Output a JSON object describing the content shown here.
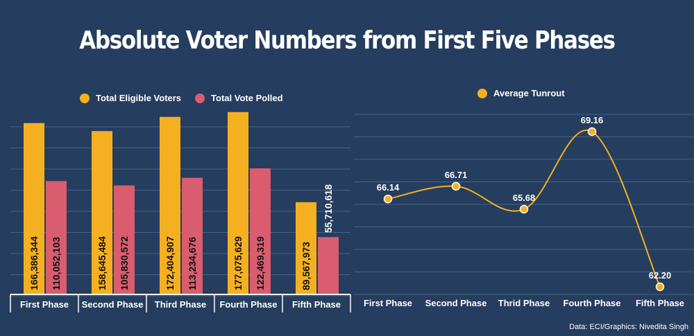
{
  "title": "Absolute Voter Numbers from First Five Phases",
  "source": "Data: ECI/Graphics: Nivedita Singh",
  "colors": {
    "background": "#253d5e",
    "eligible": "#f5b021",
    "polled": "#d95d6f",
    "line": "#f5b021",
    "grid": "#4a6283"
  },
  "chart_data": [
    {
      "type": "bar",
      "title": "",
      "categories": [
        "First Phase",
        "Second Phase",
        "Third Phase",
        "Fourth Phase",
        "Fifth Phase"
      ],
      "series": [
        {
          "name": "Total Eligible Voters",
          "values": [
            166386344,
            158645484,
            172404907,
            177075629,
            89567973
          ],
          "labels": [
            "166,386,344",
            "158,645,484",
            "172,404,907",
            "177,075,629",
            "89,567,973"
          ]
        },
        {
          "name": "Total Vote Polled",
          "values": [
            110052103,
            105830572,
            113234676,
            122469319,
            55710618
          ],
          "labels": [
            "110,052,103",
            "105,830,572",
            "113,234,676",
            "122,469,319",
            "55,710,618"
          ]
        }
      ],
      "ylim": [
        0,
        185000000
      ],
      "grid": true,
      "legend": "top-center"
    },
    {
      "type": "line",
      "title": "",
      "categories": [
        "First Phase",
        "Second Phase",
        "Thrid Phase",
        "Fourth Phase",
        "Fifth Phase"
      ],
      "series": [
        {
          "name": "Average Tunrout",
          "values": [
            66.14,
            66.71,
            65.68,
            69.16,
            62.2
          ],
          "labels": [
            "66.14",
            "66.71",
            "65.68",
            "69.16",
            "62.20"
          ]
        }
      ],
      "ylim": [
        61.5,
        69.7
      ],
      "grid": true,
      "legend": "top-center"
    }
  ]
}
